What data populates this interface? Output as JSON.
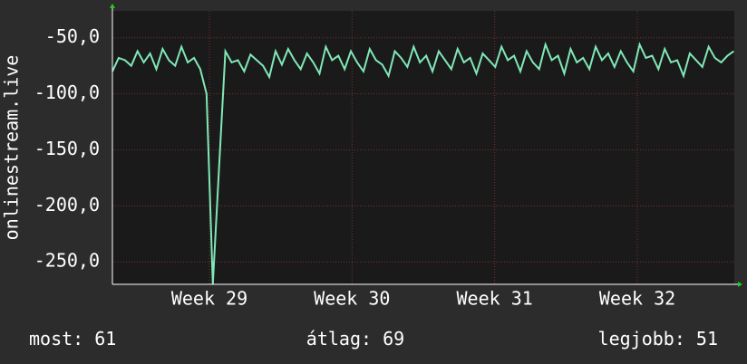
{
  "chart_data": {
    "type": "line",
    "y_label": "onlinestream.live",
    "x": [
      28.32,
      28.364,
      28.408,
      28.452,
      28.496,
      28.54,
      28.584,
      28.628,
      28.672,
      28.716,
      28.76,
      28.804,
      28.848,
      28.892,
      28.936,
      28.98,
      29.024,
      29.068,
      29.112,
      29.156,
      29.2,
      29.244,
      29.288,
      29.332,
      29.376,
      29.42,
      29.464,
      29.508,
      29.552,
      29.596,
      29.64,
      29.684,
      29.728,
      29.772,
      29.816,
      29.86,
      29.904,
      29.948,
      29.992,
      30.036,
      30.08,
      30.124,
      30.168,
      30.212,
      30.256,
      30.3,
      30.344,
      30.388,
      30.432,
      30.476,
      30.52,
      30.564,
      30.608,
      30.652,
      30.696,
      30.74,
      30.784,
      30.828,
      30.872,
      30.916,
      30.96,
      31.004,
      31.048,
      31.092,
      31.136,
      31.18,
      31.224,
      31.268,
      31.312,
      31.356,
      31.4,
      31.444,
      31.488,
      31.532,
      31.576,
      31.62,
      31.664,
      31.708,
      31.752,
      31.796,
      31.84,
      31.884,
      31.928,
      31.972,
      32.016,
      32.06,
      32.104,
      32.148,
      32.192,
      32.236,
      32.28,
      32.324,
      32.368,
      32.412,
      32.456,
      32.5,
      32.544,
      32.588,
      32.632,
      32.676
    ],
    "series": [
      {
        "color": "#80e8b8",
        "values": [
          -80,
          -68,
          -70,
          -75,
          -62,
          -72,
          -64,
          -78,
          -60,
          -70,
          -75,
          -58,
          -72,
          -68,
          -78,
          -100,
          -270,
          -165,
          -62,
          -72,
          -70,
          -80,
          -65,
          -70,
          -75,
          -85,
          -62,
          -74,
          -60,
          -70,
          -78,
          -64,
          -72,
          -82,
          -58,
          -70,
          -66,
          -78,
          -62,
          -72,
          -80,
          -60,
          -70,
          -74,
          -84,
          -62,
          -68,
          -76,
          -58,
          -72,
          -66,
          -80,
          -62,
          -70,
          -78,
          -60,
          -72,
          -68,
          -82,
          -64,
          -70,
          -76,
          -58,
          -70,
          -66,
          -80,
          -62,
          -72,
          -78,
          -56,
          -70,
          -66,
          -82,
          -60,
          -72,
          -68,
          -78,
          -58,
          -70,
          -64,
          -76,
          -62,
          -72,
          -80,
          -56,
          -68,
          -66,
          -78,
          -60,
          -72,
          -70,
          -84,
          -64,
          -70,
          -76,
          -58,
          -68,
          -72,
          -66,
          -62
        ]
      }
    ],
    "xlim": [
      28.32,
      32.68
    ],
    "xticks": [
      {
        "value": 29,
        "label": "Week 29"
      },
      {
        "value": 30,
        "label": "Week 30"
      },
      {
        "value": 31,
        "label": "Week 31"
      },
      {
        "value": 32,
        "label": "Week 32"
      }
    ],
    "ylim": [
      -270,
      -26
    ],
    "yticks": [
      {
        "value": -250,
        "label": "-250,0"
      },
      {
        "value": -200,
        "label": "-200,0"
      },
      {
        "value": -150,
        "label": "-150,0"
      },
      {
        "value": -100,
        "label": "-100,0"
      },
      {
        "value": -50,
        "label": "-50,0"
      }
    ],
    "grid": true,
    "stats": [
      {
        "label": "most:",
        "value": 61
      },
      {
        "label": "átlag:",
        "value": 69
      },
      {
        "label": "legjobb:",
        "value": 51
      }
    ]
  }
}
